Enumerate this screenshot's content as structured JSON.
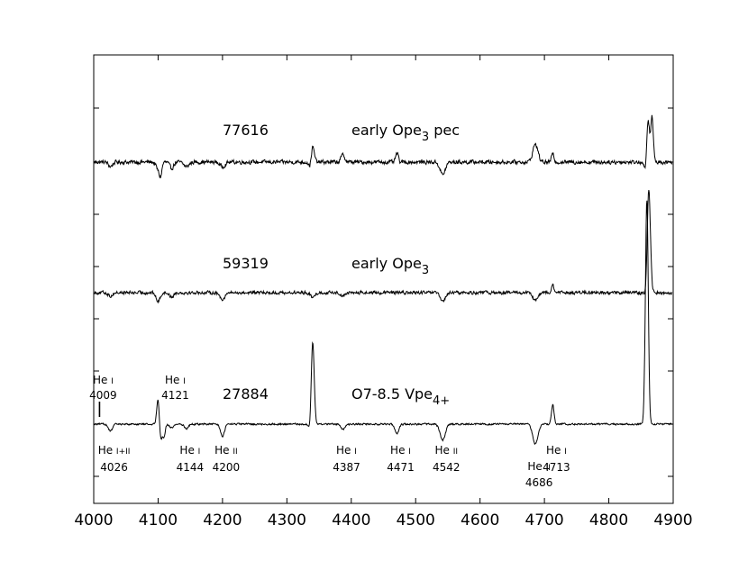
{
  "chart_data": {
    "type": "line",
    "title": "",
    "xlabel": "",
    "ylabel": "",
    "xlim": [
      4000,
      4900
    ],
    "xticks": [
      4000,
      4100,
      4200,
      4300,
      4400,
      4500,
      4600,
      4700,
      4800,
      4900
    ],
    "yticks": 8,
    "grid": false,
    "series": [
      {
        "id": "77616",
        "star_id": "77616",
        "class_main": "early Ope",
        "class_sub": "3",
        "class_tail": " pec",
        "noise": 3.0,
        "features": [
          {
            "x": 4026,
            "depth": -5,
            "width": 3
          },
          {
            "x": 4100,
            "depth": -8,
            "width": 3
          },
          {
            "x": 4104,
            "depth": -13,
            "width": 2
          },
          {
            "x": 4121,
            "depth": -7,
            "width": 3
          },
          {
            "x": 4144,
            "depth": -5,
            "width": 4
          },
          {
            "x": 4200,
            "depth": -5,
            "width": 4
          },
          {
            "x": 4340,
            "depth": 17,
            "width": 2.5
          },
          {
            "x": 4336,
            "depth": -7,
            "width": 2
          },
          {
            "x": 4387,
            "depth": 8,
            "width": 3
          },
          {
            "x": 4471,
            "depth": 10,
            "width": 2
          },
          {
            "x": 4542,
            "depth": -14,
            "width": 4
          },
          {
            "x": 4686,
            "depth": 20,
            "width": 4
          },
          {
            "x": 4713,
            "depth": 9,
            "width": 2
          },
          {
            "x": 4857,
            "depth": -10,
            "width": 2
          },
          {
            "x": 4861,
            "depth": 48,
            "width": 2
          },
          {
            "x": 4867,
            "depth": 50,
            "width": 2
          }
        ]
      },
      {
        "id": "59319",
        "star_id": "59319",
        "class_main": "early Ope",
        "class_sub": "3",
        "class_tail": "",
        "noise": 2.5,
        "features": [
          {
            "x": 4026,
            "depth": -4,
            "width": 3
          },
          {
            "x": 4100,
            "depth": -10,
            "width": 3
          },
          {
            "x": 4121,
            "depth": -5,
            "width": 3
          },
          {
            "x": 4200,
            "depth": -7,
            "width": 4
          },
          {
            "x": 4340,
            "depth": -6,
            "width": 3
          },
          {
            "x": 4387,
            "depth": -4,
            "width": 3
          },
          {
            "x": 4542,
            "depth": -10,
            "width": 4
          },
          {
            "x": 4686,
            "depth": -9,
            "width": 4
          },
          {
            "x": 4713,
            "depth": 8,
            "width": 2
          },
          {
            "x": 4858,
            "depth": -8,
            "width": 2
          },
          {
            "x": 4862,
            "depth": 115,
            "width": 2.5
          }
        ]
      },
      {
        "id": "27884",
        "star_id": "27884",
        "class_main": "O7-8.5 Vpe",
        "class_sub": "4+",
        "class_tail": "",
        "noise": 1.3,
        "features": [
          {
            "x": 4026,
            "depth": -8,
            "width": 3
          },
          {
            "x": 4100,
            "depth": 30,
            "width": 2
          },
          {
            "x": 4104,
            "depth": -18,
            "width": 2
          },
          {
            "x": 4109,
            "depth": -14,
            "width": 2
          },
          {
            "x": 4121,
            "depth": -4,
            "width": 3
          },
          {
            "x": 4144,
            "depth": -5,
            "width": 3
          },
          {
            "x": 4200,
            "depth": -14,
            "width": 3
          },
          {
            "x": 4340,
            "depth": 92,
            "width": 2.3
          },
          {
            "x": 4336,
            "depth": -10,
            "width": 2
          },
          {
            "x": 4387,
            "depth": -6,
            "width": 3
          },
          {
            "x": 4471,
            "depth": -10,
            "width": 3
          },
          {
            "x": 4542,
            "depth": -18,
            "width": 4
          },
          {
            "x": 4686,
            "depth": -22,
            "width": 4
          },
          {
            "x": 4713,
            "depth": 22,
            "width": 2
          },
          {
            "x": 4859,
            "depth": 250,
            "width": 2.2
          }
        ]
      }
    ],
    "annotations": [
      {
        "id": "he1-4009",
        "ion": "He",
        "stage": "I",
        "wavelength": "4009",
        "x": 4009,
        "pos": "above",
        "marker": true
      },
      {
        "id": "he1-4121",
        "ion": "He",
        "stage": "I",
        "wavelength": "4121",
        "x": 4121,
        "pos": "above",
        "marker": false
      },
      {
        "id": "he12-4026",
        "ion": "He",
        "stage": "I+II",
        "wavelength": "4026",
        "x": 4026,
        "pos": "below",
        "marker": false
      },
      {
        "id": "he1-4144",
        "ion": "He",
        "stage": "I",
        "wavelength": "4144",
        "x": 4144,
        "pos": "below",
        "marker": false
      },
      {
        "id": "he2-4200",
        "ion": "He",
        "stage": "II",
        "wavelength": "4200",
        "x": 4200,
        "pos": "below",
        "marker": false
      },
      {
        "id": "he1-4387",
        "ion": "He",
        "stage": "I",
        "wavelength": "4387",
        "x": 4387,
        "pos": "below",
        "marker": false
      },
      {
        "id": "he1-4471",
        "ion": "He",
        "stage": "I",
        "wavelength": "4471",
        "x": 4471,
        "pos": "below",
        "marker": false
      },
      {
        "id": "he2-4542",
        "ion": "He",
        "stage": "II",
        "wavelength": "4542",
        "x": 4542,
        "pos": "below",
        "marker": false
      },
      {
        "id": "he2-4686",
        "ion": "He",
        "stage": "II",
        "wavelength": "4686",
        "x": 4686,
        "pos": "below-offset",
        "marker": false
      },
      {
        "id": "he1-4713",
        "ion": "He",
        "stage": "I",
        "wavelength": "4713",
        "x": 4713,
        "pos": "below",
        "marker": false
      }
    ]
  }
}
